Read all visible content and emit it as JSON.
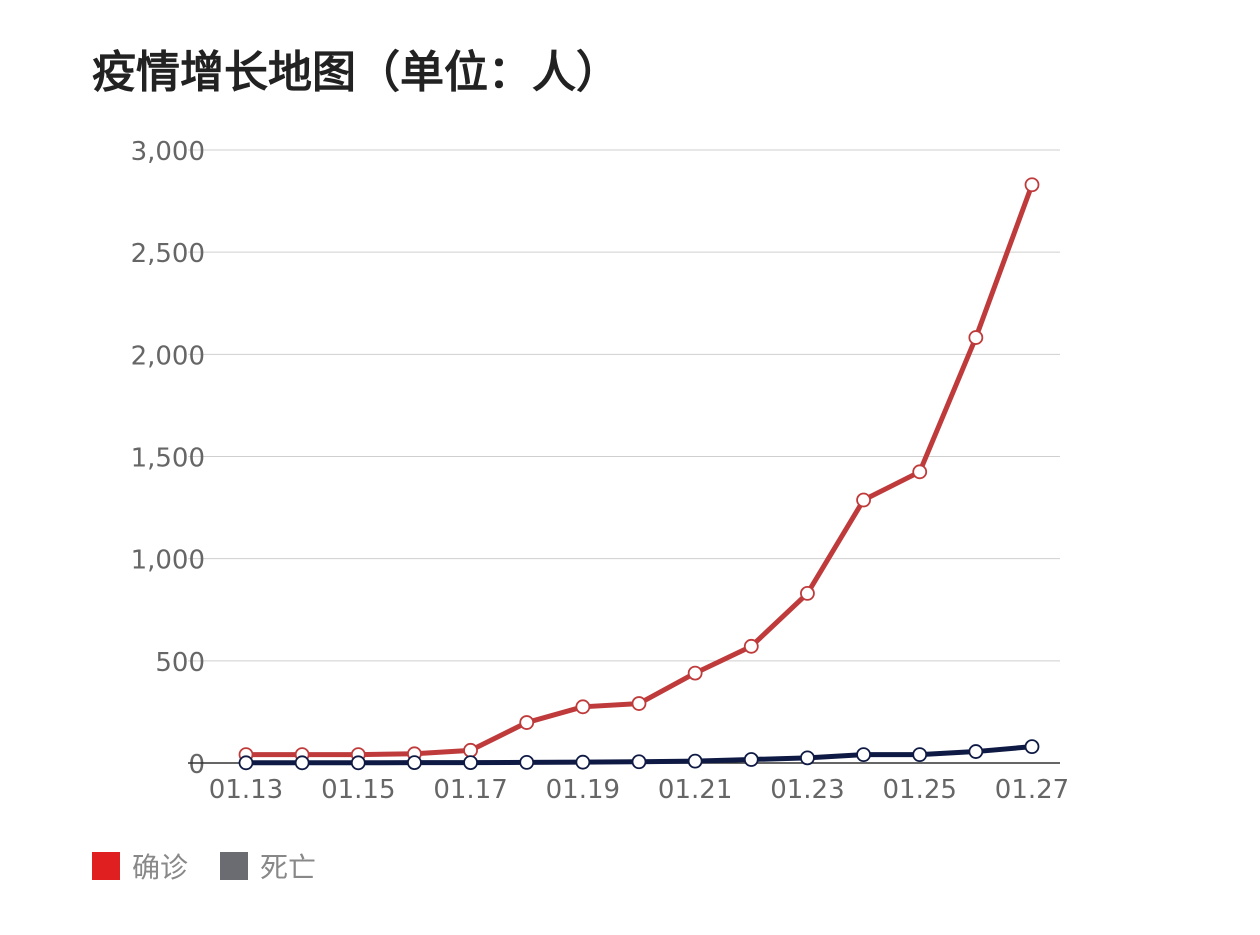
{
  "title": "疫情增长地图（单位：人）",
  "chart_data": {
    "type": "line",
    "title": "疫情增长地图（单位：人）",
    "xlabel": "",
    "ylabel": "",
    "x": [
      "01.13",
      "01.14",
      "01.15",
      "01.16",
      "01.17",
      "01.18",
      "01.19",
      "01.20",
      "01.21",
      "01.22",
      "01.23",
      "01.24",
      "01.25",
      "01.26",
      "01.27"
    ],
    "x_tick_labels": [
      "01.13",
      "01.15",
      "01.17",
      "01.19",
      "01.21",
      "01.23",
      "01.25",
      "01.27"
    ],
    "ylim": [
      0,
      3000
    ],
    "y_ticks": [
      0,
      500,
      1000,
      1500,
      2000,
      2500,
      3000
    ],
    "y_tick_labels": [
      "0",
      "500",
      "1,000",
      "1,500",
      "2,000",
      "2,500",
      "3,000"
    ],
    "grid": true,
    "legend_position": "bottom-left",
    "series": [
      {
        "name": "确诊",
        "line_color": "#bf3b3b",
        "legend_color": "#e02020",
        "values": [
          41,
          41,
          41,
          45,
          62,
          198,
          275,
          291,
          440,
          571,
          830,
          1287,
          1425,
          2082,
          2830
        ]
      },
      {
        "name": "死亡",
        "line_color": "#0f1a44",
        "legend_color": "#6b6b72",
        "values": [
          1,
          1,
          1,
          2,
          2,
          3,
          4,
          6,
          9,
          17,
          25,
          41,
          41,
          56,
          80
        ]
      }
    ]
  }
}
